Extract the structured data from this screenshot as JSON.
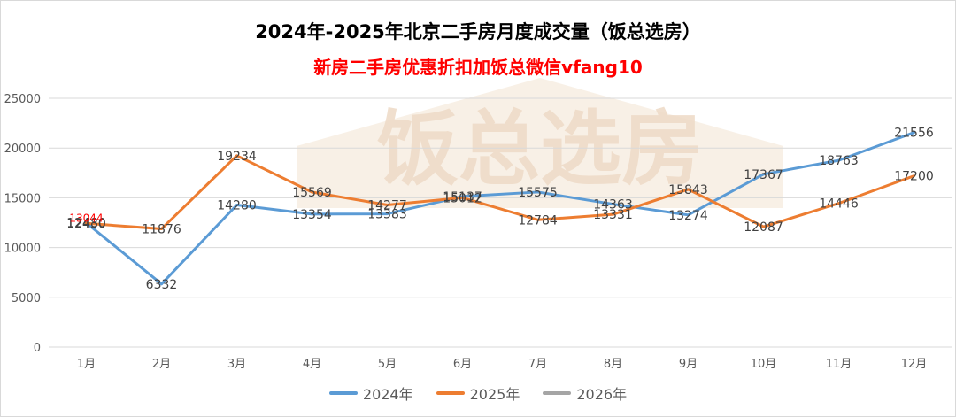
{
  "chart_data": {
    "type": "line",
    "title": "2024年-2025年北京二手房月度成交量（饭总选房）",
    "subtitle": "新房二手房优惠折扣加饭总微信vfang10",
    "watermark": "饭总选房",
    "categories": [
      "1月",
      "2月",
      "3月",
      "4月",
      "5月",
      "6月",
      "7月",
      "8月",
      "9月",
      "10月",
      "11月",
      "12月"
    ],
    "ylim": [
      0,
      25000
    ],
    "yticks": [
      0,
      5000,
      10000,
      15000,
      20000,
      25000
    ],
    "grid": true,
    "legend_position": "bottom",
    "series": [
      {
        "name": "2024年",
        "color": "#5b9bd5",
        "values": [
          12480,
          6332,
          14280,
          13354,
          13383,
          15137,
          15575,
          14363,
          13274,
          17367,
          18763,
          21556
        ],
        "labels": [
          "12480",
          "6332",
          "14280",
          "13354",
          "13383",
          "15137",
          "15575",
          "14363",
          "13274",
          "17367",
          "18763",
          "21556"
        ]
      },
      {
        "name": "2025年",
        "color": "#ed7d31",
        "values": [
          12430,
          11876,
          19234,
          15569,
          14277,
          15012,
          12784,
          13331,
          15843,
          12087,
          14446,
          17200
        ],
        "labels": [
          "12430",
          "11876",
          "19234",
          "15569",
          "14277",
          "15012",
          "12784",
          "13331",
          "15843",
          "12087",
          "14446",
          "17200"
        ]
      },
      {
        "name": "2026年",
        "color": "#a5a5a5",
        "values": [
          13044,
          null,
          null,
          null,
          null,
          null,
          null,
          null,
          null,
          null,
          null,
          null
        ],
        "labels": [
          "13044",
          "",
          "",
          "",
          "",
          "",
          "",
          "",
          "",
          "",
          "",
          ""
        ]
      }
    ]
  }
}
